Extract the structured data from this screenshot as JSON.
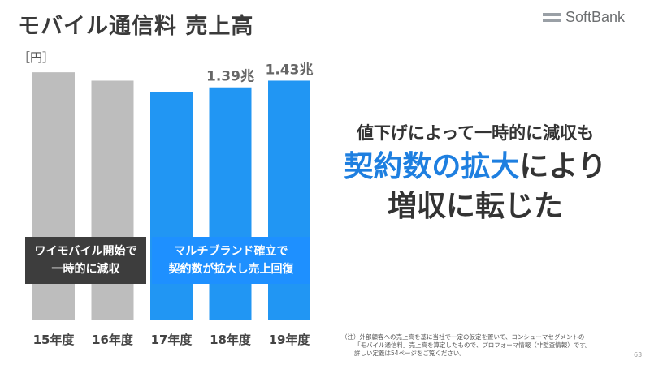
{
  "title": "モバイル通信料 売上高",
  "logo_text": "SoftBank",
  "unit_label": "［円］",
  "chart_data": {
    "type": "bar",
    "title": "モバイル通信料 売上高",
    "ylabel": "［円］",
    "categories": [
      "15年度",
      "16年度",
      "17年度",
      "18年度",
      "19年度"
    ],
    "values": [
      1.48,
      1.43,
      1.36,
      1.39,
      1.43
    ],
    "data_labels": [
      "",
      "",
      "",
      "1.39兆",
      "1.43兆"
    ],
    "bar_colors": [
      "#bdbdbd",
      "#bdbdbd",
      "#2196f3",
      "#2196f3",
      "#2196f3"
    ],
    "ylim": [
      0,
      1.5
    ],
    "grid": false
  },
  "callouts": {
    "left_line1": "ワイモバイル開始で",
    "left_line2": "一時的に減収",
    "right_line1": "マルチブランド確立で",
    "right_line2": "契約数が拡大し売上回復"
  },
  "headline": {
    "line1": "値下げによって一時的に減収も",
    "line2_blue": "契約数の拡大",
    "line2_dark": "により",
    "line3": "増収に転じた"
  },
  "note": {
    "line1": "（注）外部顧客への売上高を基に当社で一定の仮定を置いて、コンシューマセグメントの",
    "line2": "「モバイル通信料」売上高を算定したもので、プロフォーマ情報（非監査情報）です。",
    "line3": "詳しい定義は54ページをご覧ください。"
  },
  "page_number": "63",
  "colors": {
    "gray_bar": "#bdbdbd",
    "blue_bar": "#2196f3",
    "accent_blue": "#1e7fe0",
    "callout_dark": "#3d3d3d",
    "callout_blue": "#1e90ff"
  }
}
